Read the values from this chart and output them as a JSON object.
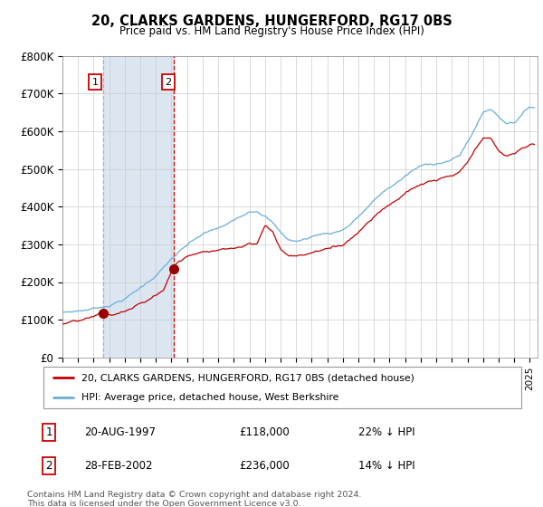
{
  "title": "20, CLARKS GARDENS, HUNGERFORD, RG17 0BS",
  "subtitle": "Price paid vs. HM Land Registry's House Price Index (HPI)",
  "xlim_start": 1995.0,
  "xlim_end": 2025.5,
  "ylim": [
    0,
    800000
  ],
  "yticks": [
    0,
    100000,
    200000,
    300000,
    400000,
    500000,
    600000,
    700000,
    800000
  ],
  "ytick_labels": [
    "£0",
    "£100K",
    "£200K",
    "£300K",
    "£400K",
    "£500K",
    "£600K",
    "£700K",
    "£800K"
  ],
  "sale1_date": 1997.636,
  "sale1_price": 118000,
  "sale2_date": 2002.163,
  "sale2_price": 236000,
  "hpi_color": "#6aaed6",
  "price_color": "#c00000",
  "shade_color": "#dce6f1",
  "vline1_color": "#aaaaaa",
  "vline2_color": "#cc0000",
  "legend_line1": "20, CLARKS GARDENS, HUNGERFORD, RG17 0BS (detached house)",
  "legend_line2": "HPI: Average price, detached house, West Berkshire",
  "table_row1": [
    "1",
    "20-AUG-1997",
    "£118,000",
    "22% ↓ HPI"
  ],
  "table_row2": [
    "2",
    "28-FEB-2002",
    "£236,000",
    "14% ↓ HPI"
  ],
  "footnote": "Contains HM Land Registry data © Crown copyright and database right 2024.\nThis data is licensed under the Open Government Licence v3.0.",
  "grid_color": "#cccccc",
  "hpi_key_years": [
    1995.0,
    1995.5,
    1996.0,
    1996.5,
    1997.0,
    1997.5,
    1998.0,
    1998.5,
    1999.0,
    1999.5,
    2000.0,
    2000.5,
    2001.0,
    2001.5,
    2002.0,
    2002.5,
    2003.0,
    2003.5,
    2004.0,
    2004.5,
    2005.0,
    2005.5,
    2006.0,
    2006.5,
    2007.0,
    2007.5,
    2008.0,
    2008.5,
    2009.0,
    2009.5,
    2010.0,
    2010.5,
    2011.0,
    2011.5,
    2012.0,
    2012.5,
    2013.0,
    2013.5,
    2014.0,
    2014.5,
    2015.0,
    2015.5,
    2016.0,
    2016.5,
    2017.0,
    2017.5,
    2018.0,
    2018.5,
    2019.0,
    2019.5,
    2020.0,
    2020.5,
    2021.0,
    2021.5,
    2022.0,
    2022.5,
    2023.0,
    2023.5,
    2024.0,
    2024.5,
    2025.0
  ],
  "hpi_key_vals": [
    120000,
    122000,
    125000,
    128000,
    132000,
    137000,
    143000,
    152000,
    162000,
    175000,
    190000,
    207000,
    225000,
    245000,
    268000,
    285000,
    300000,
    315000,
    328000,
    335000,
    342000,
    350000,
    360000,
    375000,
    390000,
    395000,
    385000,
    365000,
    338000,
    320000,
    315000,
    320000,
    328000,
    335000,
    338000,
    342000,
    350000,
    365000,
    385000,
    405000,
    425000,
    445000,
    460000,
    475000,
    490000,
    505000,
    515000,
    520000,
    525000,
    530000,
    535000,
    545000,
    580000,
    620000,
    660000,
    670000,
    650000,
    635000,
    640000,
    660000,
    680000
  ],
  "prop_key_years": [
    1995.0,
    1995.5,
    1996.0,
    1996.5,
    1997.0,
    1997.636,
    1998.0,
    1998.5,
    1999.0,
    1999.5,
    2000.0,
    2000.5,
    2001.0,
    2001.5,
    2002.163,
    2002.5,
    2003.0,
    2003.5,
    2004.0,
    2004.5,
    2005.0,
    2005.5,
    2006.0,
    2006.5,
    2007.0,
    2007.5,
    2008.0,
    2008.5,
    2009.0,
    2009.5,
    2010.0,
    2010.5,
    2011.0,
    2011.5,
    2012.0,
    2012.5,
    2013.0,
    2013.5,
    2014.0,
    2014.5,
    2015.0,
    2015.5,
    2016.0,
    2016.5,
    2017.0,
    2017.5,
    2018.0,
    2018.5,
    2019.0,
    2019.5,
    2020.0,
    2020.5,
    2021.0,
    2021.5,
    2022.0,
    2022.5,
    2023.0,
    2023.5,
    2024.0,
    2024.5,
    2025.0
  ],
  "prop_key_vals": [
    88000,
    90000,
    92000,
    95000,
    99000,
    118000,
    103000,
    108000,
    114000,
    122000,
    132000,
    143000,
    155000,
    170000,
    236000,
    248000,
    258000,
    268000,
    278000,
    282000,
    285000,
    288000,
    292000,
    298000,
    308000,
    310000,
    358000,
    340000,
    295000,
    280000,
    278000,
    282000,
    288000,
    293000,
    298000,
    302000,
    310000,
    328000,
    348000,
    370000,
    392000,
    412000,
    428000,
    442000,
    456000,
    470000,
    480000,
    486000,
    490000,
    495000,
    498000,
    505000,
    530000,
    560000,
    590000,
    585000,
    555000,
    540000,
    545000,
    560000,
    570000
  ]
}
